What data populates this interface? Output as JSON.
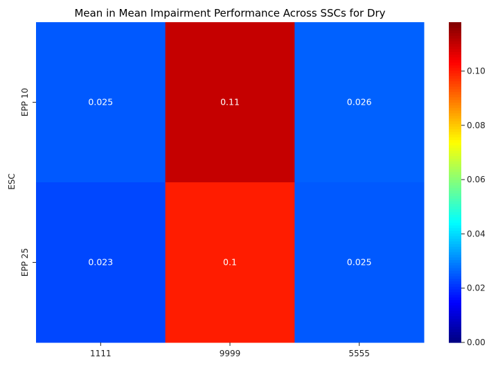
{
  "chart_data": {
    "type": "heatmap",
    "title": "Mean in Mean Impairment Performance Across SSCs for Dry",
    "xlabel": "",
    "ylabel": "ESC",
    "x_categories": [
      "1111",
      "9999",
      "5555"
    ],
    "y_categories": [
      "EPP 10",
      "EPP 25"
    ],
    "values": [
      [
        0.025,
        0.11,
        0.026
      ],
      [
        0.023,
        0.1,
        0.025
      ]
    ],
    "cell_labels": [
      [
        "0.025",
        "0.11",
        "0.026"
      ],
      [
        "0.023",
        "0.1",
        "0.025"
      ]
    ],
    "colormap": "jet",
    "colorbar": {
      "min": 0.0,
      "max": 0.118,
      "ticks": [
        0.0,
        0.02,
        0.04,
        0.06,
        0.08,
        0.1
      ],
      "tick_labels": [
        "0.00",
        "0.02",
        "0.04",
        "0.06",
        "0.08",
        "0.10"
      ]
    }
  }
}
